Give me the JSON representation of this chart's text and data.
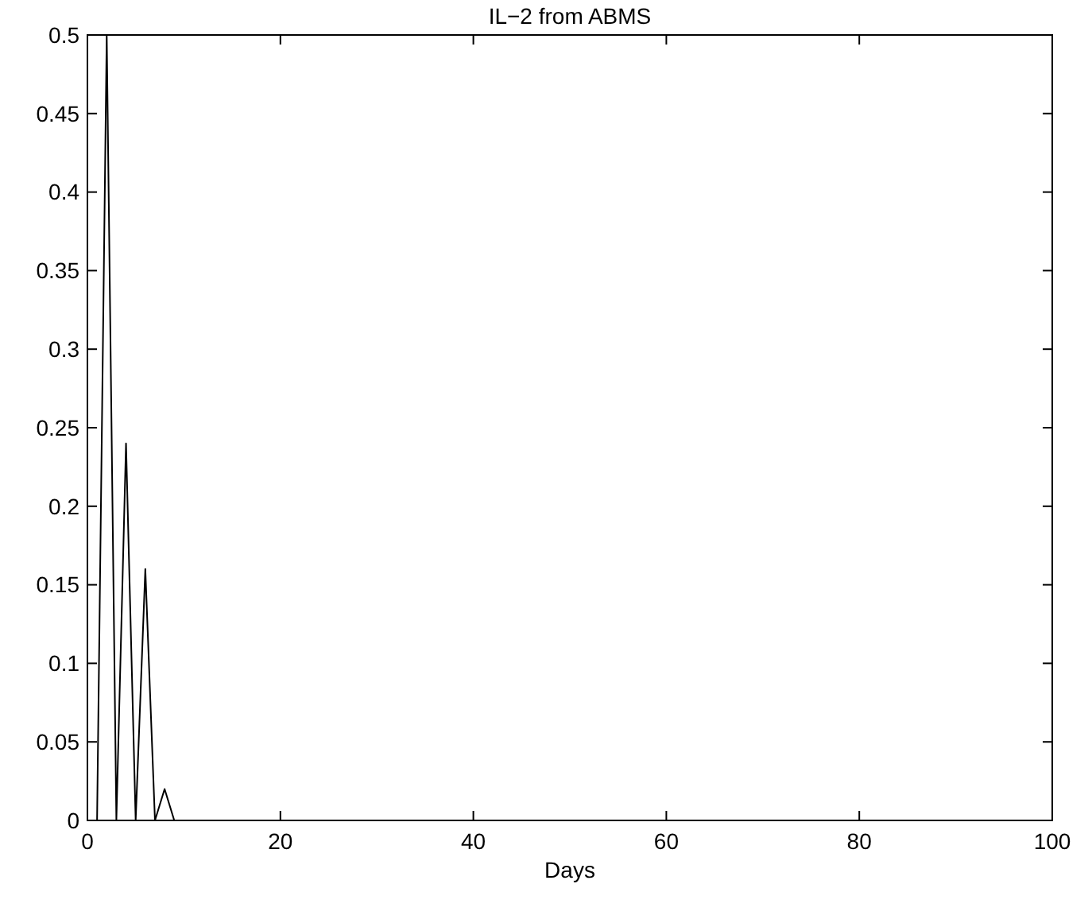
{
  "chart_data": {
    "type": "line",
    "title": "IL−2 from ABMS",
    "xlabel": "Days",
    "x": [
      0,
      1,
      2,
      3,
      4,
      5,
      6,
      7,
      8,
      9,
      100
    ],
    "series": [
      {
        "color": "#000000",
        "values": [
          0,
          0,
          0.5,
          0,
          0.24,
          0,
          0.16,
          0,
          0.02,
          0,
          0
        ]
      }
    ],
    "xlim": [
      0,
      100
    ],
    "xticks": [
      0,
      20,
      40,
      60,
      80,
      100
    ],
    "ylim": [
      0,
      0.5
    ],
    "yticks": [
      0,
      0.05,
      0.1,
      0.15,
      0.2,
      0.25,
      0.3,
      0.35,
      0.4,
      0.45,
      0.5
    ],
    "grid": false,
    "marker": "none",
    "line_style": "solid"
  }
}
